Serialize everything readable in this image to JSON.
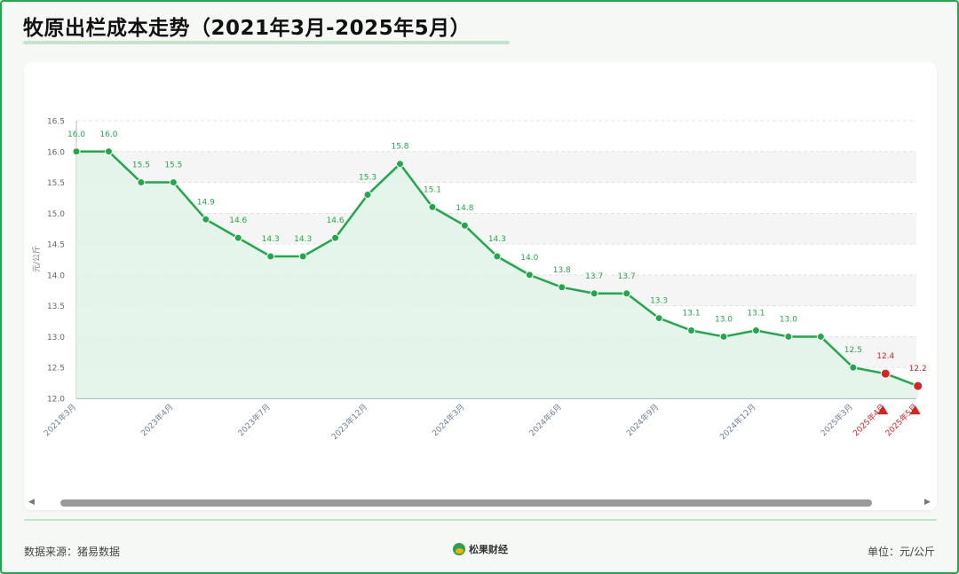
{
  "header": {
    "title": "牧原出栏成本走势（2021年3月-2025年5月）"
  },
  "footer": {
    "source": "数据来源：猪易数据",
    "unit": "单位：元/公斤",
    "logo_text": "松果财经"
  },
  "colors": {
    "line": "#1faa4a",
    "highlight": "#e02020",
    "fill": "#e2f3e7"
  },
  "chart_data": {
    "type": "line",
    "title": "牧原出栏成本走势（2021年3月-2025年5月）",
    "ylabel": "元/公斤",
    "xlabel": "",
    "ylim": [
      12.0,
      16.5
    ],
    "yticks": [
      "12.0",
      "12.5",
      "13.0",
      "13.5",
      "14.0",
      "14.5",
      "15.0",
      "15.5",
      "16.0",
      "16.5"
    ],
    "grid": true,
    "values": [
      16.0,
      16.0,
      15.5,
      15.5,
      14.9,
      14.6,
      14.3,
      14.3,
      14.6,
      15.3,
      15.8,
      15.1,
      14.8,
      14.3,
      14.0,
      13.8,
      13.7,
      13.7,
      13.3,
      13.1,
      13.0,
      13.1,
      13.0,
      13.0,
      12.5,
      12.4,
      12.2
    ],
    "value_labels": [
      "16.0",
      "16.0",
      "15.5",
      "15.5",
      "14.9",
      "14.6",
      "14.3",
      "14.3",
      "14.6",
      "15.3",
      "15.8",
      "15.1",
      "14.8",
      "14.3",
      "14.0",
      "13.8",
      "13.7",
      "13.7",
      "13.3",
      "13.1",
      "13.0",
      "13.1",
      "13.0",
      "",
      "12.5",
      "12.4",
      "12.2"
    ],
    "tick_labels": [
      {
        "index": 0,
        "label": "2021年3月",
        "highlight": false
      },
      {
        "index": 3,
        "label": "2023年4月",
        "highlight": false
      },
      {
        "index": 6,
        "label": "2023年7月",
        "highlight": false
      },
      {
        "index": 9,
        "label": "2023年12月",
        "highlight": false
      },
      {
        "index": 12,
        "label": "2024年3月",
        "highlight": false
      },
      {
        "index": 15,
        "label": "2024年6月",
        "highlight": false
      },
      {
        "index": 18,
        "label": "2024年9月",
        "highlight": false
      },
      {
        "index": 21,
        "label": "2024年12月",
        "highlight": false
      },
      {
        "index": 24,
        "label": "2025年3月",
        "highlight": false
      },
      {
        "index": 25,
        "label": "2025年4月",
        "highlight": true
      },
      {
        "index": 26,
        "label": "2025年5月",
        "highlight": true
      }
    ],
    "highlight_indices": [
      25,
      26
    ]
  }
}
